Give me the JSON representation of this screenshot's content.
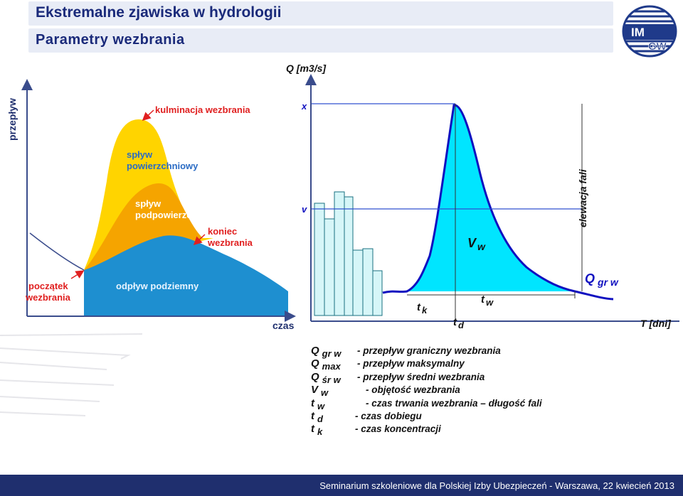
{
  "header": {
    "title": "Ekstremalne zjawiska w hydrologii",
    "subtitle": "Parametry wezbrania"
  },
  "logo": {
    "text_top": "IM",
    "text_bottom": "GW",
    "icon": "imgw-logo-icon"
  },
  "left_diagram": {
    "y_axis_label": "przepływ",
    "x_axis_label": "czas",
    "labels": {
      "culmination": "kulminacja wezbrania",
      "surface_runoff_1": "spływ",
      "surface_runoff_2": "powierzchniowy",
      "subsurface_runoff_1": "spływ",
      "subsurface_runoff_2": "podpowierzchniowy",
      "end_1": "koniec",
      "end_2": "wezbrania",
      "start_1": "początek",
      "start_2": "wezbrania",
      "baseflow": "odpływ podziemny"
    },
    "colors": {
      "surface": "#ffd400",
      "subsurface": "#f5a400",
      "baseflow": "#1e8fd0",
      "label_red": "#e02020",
      "label_blue": "#2b6cc4",
      "label_white": "#ffffff"
    }
  },
  "right_diagram": {
    "y_axis_label": "Q [m3/s]",
    "x_axis_label": "T [dni]",
    "line_x": "x",
    "line_v": "v",
    "elevation_label": "elewacja fali",
    "volume": {
      "main": "V",
      "sub": "w"
    },
    "threshold": {
      "main": "Q",
      "sub": "gr w"
    },
    "tk": {
      "main": "t",
      "sub": "k"
    },
    "tw": {
      "main": "t",
      "sub": "w"
    },
    "td": {
      "main": "t",
      "sub": "d"
    },
    "colors": {
      "wave_fill": "#00e5ff",
      "bars_fill": "#d6f6f8",
      "curve": "#1010c0",
      "line": "#3050d0"
    }
  },
  "legend": [
    {
      "symbol": "Q",
      "sub": "gr w",
      "text": "- przepływ graniczny wezbrania"
    },
    {
      "symbol": "Q",
      "sub": "max",
      "text": "- przepływ maksymalny"
    },
    {
      "symbol": "Q",
      "sub": "śr w",
      "text": "- przepływ średni wezbrania"
    },
    {
      "symbol": "V",
      "sub": "w",
      "text": "- objętość wezbrania"
    },
    {
      "symbol": "t",
      "sub": "w",
      "text": "- czas trwania wezbrania – długość fali"
    },
    {
      "symbol": "t",
      "sub": "d",
      "text": "- czas dobiegu"
    },
    {
      "symbol": "t",
      "sub": "k",
      "text": "- czas koncentracji"
    }
  ],
  "footer": {
    "text": "Seminarium szkoleniowe dla Polskiej Izby Ubezpieczeń - Warszawa, 22 kwiecień 2013"
  }
}
